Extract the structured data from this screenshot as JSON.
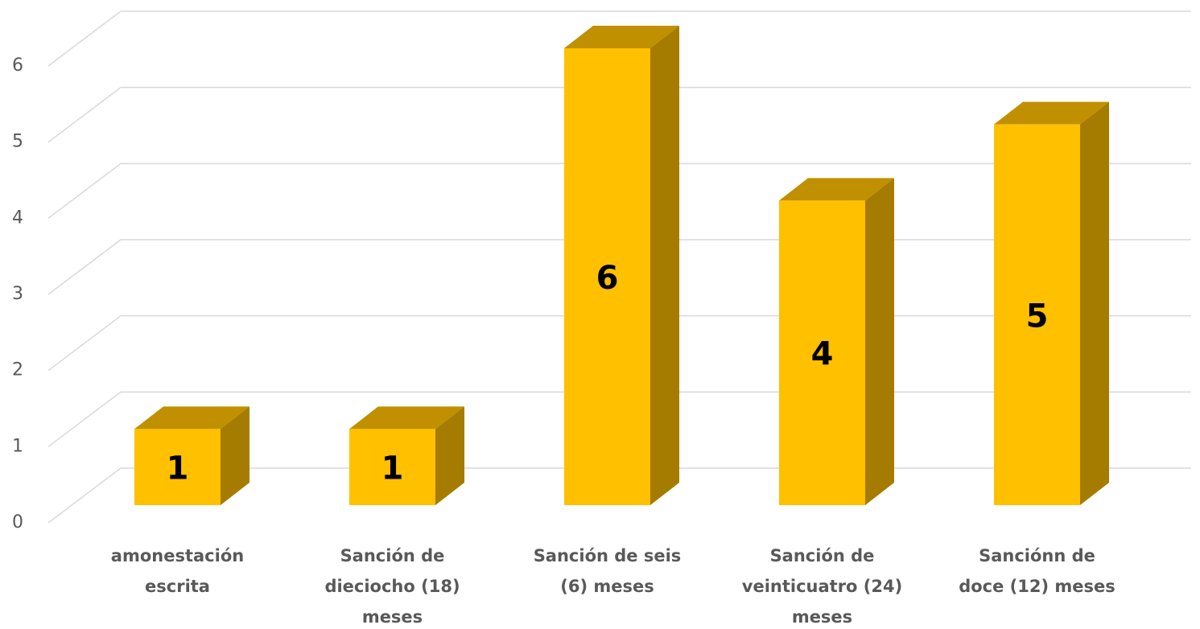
{
  "chart_data": {
    "type": "bar3d",
    "categories": [
      "amonestación escrita",
      "Sanción de dieciocho (18) meses",
      "Sanción de seis (6) meses",
      "Sanción de veinticuatro (24) meses",
      "Sanciónn de doce (12) meses"
    ],
    "values": [
      1,
      1,
      6,
      4,
      5
    ],
    "color": "#ffc000",
    "ylim": [
      0,
      6
    ],
    "yticks": [
      0,
      1,
      2,
      3,
      4,
      5,
      6
    ],
    "grid": true
  }
}
